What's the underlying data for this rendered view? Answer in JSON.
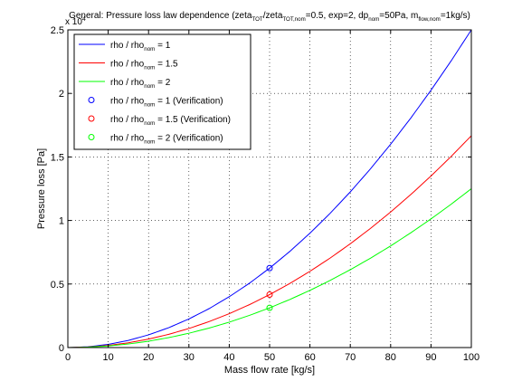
{
  "chart_data": {
    "type": "line",
    "title_parts": [
      {
        "text": "General: Pressure loss law dependence (zeta",
        "sub": false
      },
      {
        "text": "TOT",
        "sub": true
      },
      {
        "text": "/zeta",
        "sub": false
      },
      {
        "text": "TOT,nom",
        "sub": true
      },
      {
        "text": "=0.5, exp=2, dp",
        "sub": false
      },
      {
        "text": "nom",
        "sub": true
      },
      {
        "text": "=50Pa, m",
        "sub": false
      },
      {
        "text": "flow,nom",
        "sub": true
      },
      {
        "text": "=1kg/s)",
        "sub": false
      }
    ],
    "xlabel": "Mass flow rate [kg/s]",
    "ylabel": "Pressure loss [Pa]",
    "exponent_label": {
      "base": "x 10",
      "power": "4"
    },
    "xlim": [
      0,
      100
    ],
    "ylim": [
      0,
      2.5
    ],
    "y_multiplier": 10000,
    "x_ticks": [
      0,
      10,
      20,
      30,
      40,
      50,
      60,
      70,
      80,
      90,
      100
    ],
    "x_tick_labels": [
      "0",
      "10",
      "20",
      "30",
      "40",
      "50",
      "60",
      "70",
      "80",
      "90",
      "100"
    ],
    "y_ticks": [
      0,
      0.5,
      1,
      1.5,
      2,
      2.5
    ],
    "y_tick_labels": [
      "0",
      "0.5",
      "1",
      "1.5",
      "2",
      "2.5"
    ],
    "grid": true,
    "legend_position": "top-left",
    "x": [
      0,
      5,
      10,
      15,
      20,
      25,
      30,
      35,
      40,
      45,
      50,
      55,
      60,
      65,
      70,
      75,
      80,
      85,
      90,
      95,
      100
    ],
    "series": [
      {
        "name_parts": [
          {
            "text": "rho / rho",
            "sub": false
          },
          {
            "text": "nom",
            "sub": true
          },
          {
            "text": " = 1",
            "sub": false
          }
        ],
        "color": "#0000ff",
        "kind": "line",
        "values": [
          0,
          0.00625,
          0.025,
          0.05625,
          0.1,
          0.15625,
          0.225,
          0.30625,
          0.4,
          0.50625,
          0.625,
          0.75625,
          0.9,
          1.05625,
          1.225,
          1.40625,
          1.6,
          1.80625,
          2.025,
          2.25625,
          2.5
        ]
      },
      {
        "name_parts": [
          {
            "text": "rho / rho",
            "sub": false
          },
          {
            "text": "nom",
            "sub": true
          },
          {
            "text": " = 1.5",
            "sub": false
          }
        ],
        "color": "#ff0000",
        "kind": "line",
        "values": [
          0,
          0.00417,
          0.01667,
          0.0375,
          0.06667,
          0.10417,
          0.15,
          0.20417,
          0.26667,
          0.3375,
          0.41667,
          0.50417,
          0.6,
          0.70417,
          0.81667,
          0.9375,
          1.06667,
          1.20417,
          1.35,
          1.50417,
          1.66667
        ]
      },
      {
        "name_parts": [
          {
            "text": "rho / rho",
            "sub": false
          },
          {
            "text": "nom",
            "sub": true
          },
          {
            "text": " = 2",
            "sub": false
          }
        ],
        "color": "#00ff00",
        "kind": "line",
        "values": [
          0,
          0.00313,
          0.0125,
          0.02813,
          0.05,
          0.07813,
          0.1125,
          0.15313,
          0.2,
          0.25313,
          0.3125,
          0.37813,
          0.45,
          0.52813,
          0.6125,
          0.70313,
          0.8,
          0.90313,
          1.0125,
          1.12813,
          1.25
        ]
      },
      {
        "name_parts": [
          {
            "text": "rho / rho",
            "sub": false
          },
          {
            "text": "nom",
            "sub": true
          },
          {
            "text": " = 1 (Verification)",
            "sub": false
          }
        ],
        "color": "#0000ff",
        "kind": "marker",
        "x": [
          50
        ],
        "values": [
          0.625
        ]
      },
      {
        "name_parts": [
          {
            "text": "rho / rho",
            "sub": false
          },
          {
            "text": "nom",
            "sub": true
          },
          {
            "text": " = 1.5 (Verification)",
            "sub": false
          }
        ],
        "color": "#ff0000",
        "kind": "marker",
        "x": [
          50
        ],
        "values": [
          0.41667
        ]
      },
      {
        "name_parts": [
          {
            "text": "rho / rho",
            "sub": false
          },
          {
            "text": "nom",
            "sub": true
          },
          {
            "text": " = 2 (Verification)",
            "sub": false
          }
        ],
        "color": "#00ff00",
        "kind": "marker",
        "x": [
          50
        ],
        "values": [
          0.3125
        ]
      }
    ]
  }
}
